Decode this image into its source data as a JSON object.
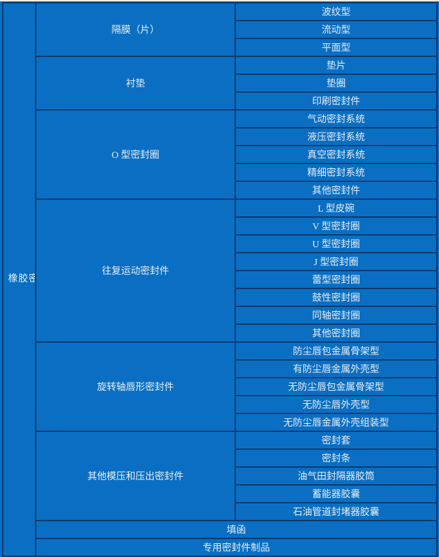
{
  "colors": {
    "cell_blue": "#0a6fc3",
    "border_navy": "#0a3a6e",
    "text_light": "#e8eef6",
    "top_edge": "#f3efe5"
  },
  "root": {
    "label": "橡胶密封件制品"
  },
  "sections": [
    {
      "label": "隔膜（片）",
      "children": [
        "波纹型",
        "流动型",
        "平面型"
      ]
    },
    {
      "label": "衬垫",
      "children": [
        "垫片",
        "垫圈",
        "印刷密封件"
      ]
    },
    {
      "label": "O 型密封圈",
      "children": [
        "气动密封系统",
        "液压密封系统",
        "真空密封系统",
        "精细密封系统",
        "其他密封件"
      ]
    },
    {
      "label": "往复运动密封件",
      "children": [
        "L 型皮碗",
        "V 型密封圈",
        "U 型密封圈",
        "J 型密封圈",
        "蕾型密封圈",
        "鼓性密封圈",
        "同轴密封圈",
        "其他密封圈"
      ]
    },
    {
      "label": "旋转轴唇形密封件",
      "children": [
        "防尘唇包金属骨架型",
        "有防尘唇金属外壳型",
        "无防尘唇包金属骨架型",
        "无防尘唇外壳型",
        "无防尘唇金属外壳组装型"
      ]
    },
    {
      "label": "其他模压和压出密封件",
      "children": [
        "密封套",
        "密封条",
        "油气田封隔器胶筒",
        "蓄能器胶囊",
        "石油管道封堵器胶囊"
      ]
    }
  ],
  "full_rows": [
    "填函",
    "专用密封件制品"
  ]
}
